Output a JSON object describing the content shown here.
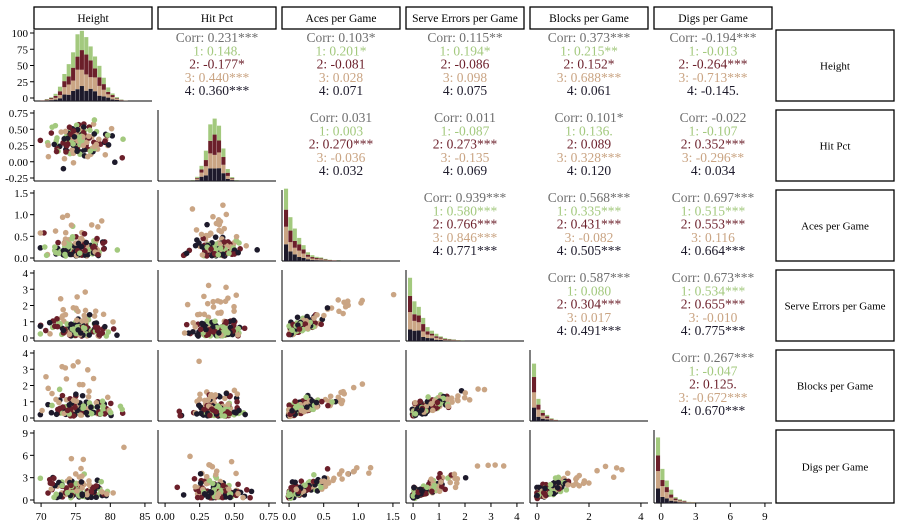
{
  "chart_data": {
    "type": "scatterplot-matrix",
    "variables": [
      "Height",
      "Hit Pct",
      "Aces per Game",
      "Serve Errors per Game",
      "Blocks per Game",
      "Digs per Game"
    ],
    "groups": [
      {
        "name": "1",
        "color": "#a3c97e"
      },
      {
        "name": "2",
        "color": "#6b1f2a"
      },
      {
        "name": "3",
        "color": "#caa584"
      },
      {
        "name": "4",
        "color": "#1d1a2b"
      }
    ],
    "overall_color": "#6e6e6e",
    "y_ticks": {
      "Height": [
        "100",
        "75",
        "50",
        "25",
        "0"
      ],
      "Hit Pct": [
        "0.75",
        "0.50",
        "0.25",
        "0.00",
        "-0.25"
      ],
      "Aces per Game": [
        "1.5",
        "1.0",
        "0.5",
        "0.0"
      ],
      "Serve Errors per Game": [
        "4",
        "3",
        "2",
        "1",
        "0"
      ],
      "Blocks per Game": [
        "4",
        "3",
        "2",
        "1",
        "0"
      ],
      "Digs per Game": [
        "9",
        "6",
        "3",
        "0"
      ]
    },
    "x_ticks": {
      "Height": [
        "70",
        "75",
        "80",
        "85"
      ],
      "Hit Pct": [
        "0.00",
        "0.25",
        "0.50",
        "0.75"
      ],
      "Aces per Game": [
        "0.0",
        "0.5",
        "1.0",
        "1.5"
      ],
      "Serve Errors per Game": [
        "0",
        "1",
        "2",
        "3",
        "4"
      ],
      "Blocks per Game": [
        "0",
        "2",
        "4"
      ],
      "Digs per Game": [
        "0",
        "3",
        "6",
        "9"
      ]
    },
    "correlations": [
      {
        "pair": [
          "Height",
          "Hit Pct"
        ],
        "overall": "Corr: 0.231***",
        "groups": [
          "1: 0.148.",
          "2: -0.177*",
          "3: 0.440***",
          "4: 0.360***"
        ]
      },
      {
        "pair": [
          "Height",
          "Aces per Game"
        ],
        "overall": "Corr: 0.103*",
        "groups": [
          "1: 0.201*",
          "2: -0.081",
          "3: 0.028",
          "4: 0.071"
        ]
      },
      {
        "pair": [
          "Height",
          "Serve Errors per Game"
        ],
        "overall": "Corr: 0.115**",
        "groups": [
          "1: 0.194*",
          "2: -0.086",
          "3: 0.098",
          "4: 0.075"
        ]
      },
      {
        "pair": [
          "Height",
          "Blocks per Game"
        ],
        "overall": "Corr: 0.373***",
        "groups": [
          "1: 0.215**",
          "2: 0.152*",
          "3: 0.688***",
          "4: 0.061"
        ]
      },
      {
        "pair": [
          "Height",
          "Digs per Game"
        ],
        "overall": "Corr: -0.194***",
        "groups": [
          "1: -0.013",
          "2: -0.264***",
          "3: -0.713***",
          "4: -0.145."
        ]
      },
      {
        "pair": [
          "Hit Pct",
          "Aces per Game"
        ],
        "overall": "Corr: 0.031",
        "groups": [
          "1: 0.003",
          "2: 0.270***",
          "3: -0.036",
          "4: 0.032"
        ]
      },
      {
        "pair": [
          "Hit Pct",
          "Serve Errors per Game"
        ],
        "overall": "Corr: 0.011",
        "groups": [
          "1: -0.087",
          "2: 0.273***",
          "3: -0.135",
          "4: 0.069"
        ]
      },
      {
        "pair": [
          "Hit Pct",
          "Blocks per Game"
        ],
        "overall": "Corr: 0.101*",
        "groups": [
          "1: 0.136.",
          "2: 0.089",
          "3: 0.328***",
          "4: 0.120"
        ]
      },
      {
        "pair": [
          "Hit Pct",
          "Digs per Game"
        ],
        "overall": "Corr: -0.022",
        "groups": [
          "1: -0.107",
          "2: 0.352***",
          "3: -0.296**",
          "4: 0.034"
        ]
      },
      {
        "pair": [
          "Aces per Game",
          "Serve Errors per Game"
        ],
        "overall": "Corr: 0.939***",
        "groups": [
          "1: 0.580***",
          "2: 0.766***",
          "3: 0.846***",
          "4: 0.771***"
        ]
      },
      {
        "pair": [
          "Aces per Game",
          "Blocks per Game"
        ],
        "overall": "Corr: 0.568***",
        "groups": [
          "1: 0.335***",
          "2: 0.431***",
          "3: -0.082",
          "4: 0.505***"
        ]
      },
      {
        "pair": [
          "Aces per Game",
          "Digs per Game"
        ],
        "overall": "Corr: 0.697***",
        "groups": [
          "1: 0.515***",
          "2: 0.553***",
          "3: 0.116",
          "4: 0.664***"
        ]
      },
      {
        "pair": [
          "Serve Errors per Game",
          "Blocks per Game"
        ],
        "overall": "Corr: 0.587***",
        "groups": [
          "1: 0.080",
          "2: 0.304***",
          "3: 0.017",
          "4: 0.491***"
        ]
      },
      {
        "pair": [
          "Serve Errors per Game",
          "Digs per Game"
        ],
        "overall": "Corr: 0.673***",
        "groups": [
          "1: 0.534***",
          "2: 0.655***",
          "3: -0.010",
          "4: 0.775***"
        ]
      },
      {
        "pair": [
          "Blocks per Game",
          "Digs per Game"
        ],
        "overall": "Corr: 0.267***",
        "groups": [
          "1: -0.047",
          "2: 0.125.",
          "3: -0.672***",
          "4: 0.670***"
        ]
      }
    ],
    "diagonal": "stacked histogram",
    "lower": "scatter",
    "grid": false
  }
}
